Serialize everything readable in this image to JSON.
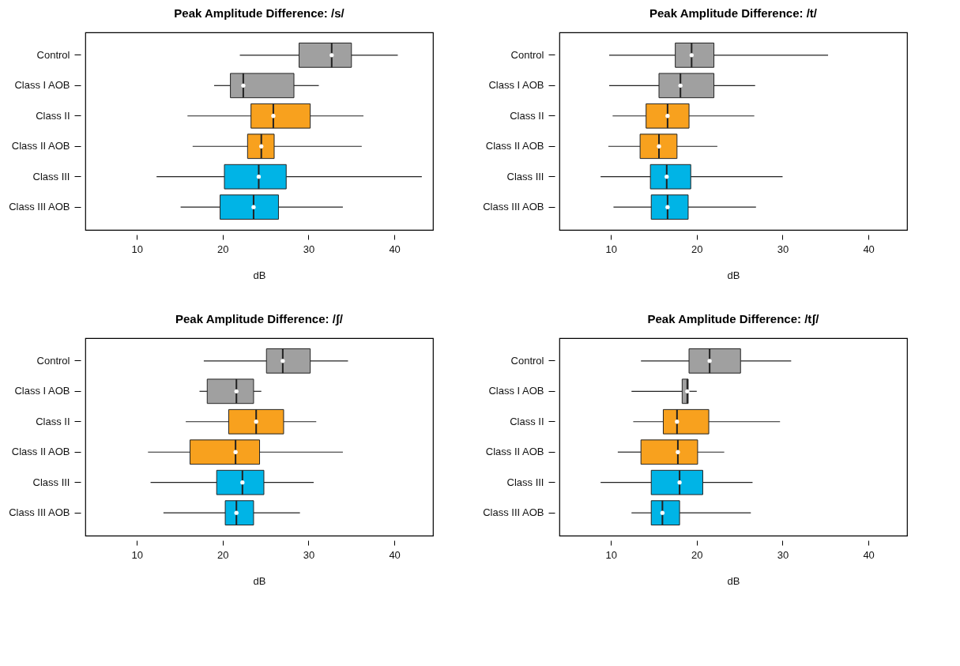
{
  "chart_data": [
    {
      "type": "box",
      "title": "Peak Amplitude Difference:  /s/",
      "xlabel": "dB",
      "orientation": "horizontal",
      "categories": [
        "Control",
        "Class I AOB",
        "Class II",
        "Class II AOB",
        "Class III",
        "Class III AOB"
      ],
      "colors": [
        "#a0a0a0",
        "#a0a0a0",
        "#f8a11e",
        "#f8a11e",
        "#00b4e6",
        "#00b4e6"
      ],
      "xlim": [
        4,
        44.5
      ],
      "xticks": [
        10,
        20,
        30,
        40
      ],
      "grid": false,
      "boxes": [
        {
          "low": 22,
          "q1": 28.9,
          "median": 32.7,
          "q3": 35,
          "high": 40.4
        },
        {
          "low": 19,
          "q1": 20.9,
          "median": 22.4,
          "q3": 28.3,
          "high": 31.2
        },
        {
          "low": 15.9,
          "q1": 23.3,
          "median": 25.9,
          "q3": 30.2,
          "high": 36.4
        },
        {
          "low": 16.5,
          "q1": 22.9,
          "median": 24.5,
          "q3": 26,
          "high": 36.2
        },
        {
          "low": 12.3,
          "q1": 20.2,
          "median": 24.2,
          "q3": 27.4,
          "high": 43.2
        },
        {
          "low": 15.1,
          "q1": 19.7,
          "median": 23.6,
          "q3": 26.5,
          "high": 34
        }
      ]
    },
    {
      "type": "box",
      "title": "Peak Amplitude Difference:  /t/",
      "xlabel": "dB",
      "orientation": "horizontal",
      "categories": [
        "Control",
        "Class I AOB",
        "Class II",
        "Class II AOB",
        "Class III",
        "Class III AOB"
      ],
      "colors": [
        "#a0a0a0",
        "#a0a0a0",
        "#f8a11e",
        "#f8a11e",
        "#00b4e6",
        "#00b4e6"
      ],
      "xlim": [
        4,
        44.5
      ],
      "xticks": [
        10,
        20,
        30,
        40
      ],
      "grid": false,
      "boxes": [
        {
          "low": 9.8,
          "q1": 17.5,
          "median": 19.4,
          "q3": 22,
          "high": 35.3
        },
        {
          "low": 9.8,
          "q1": 15.6,
          "median": 18.1,
          "q3": 22,
          "high": 26.8
        },
        {
          "low": 10.2,
          "q1": 14.1,
          "median": 16.6,
          "q3": 19.1,
          "high": 26.7
        },
        {
          "low": 9.7,
          "q1": 13.4,
          "median": 15.6,
          "q3": 17.7,
          "high": 22.4
        },
        {
          "low": 8.8,
          "q1": 14.6,
          "median": 16.5,
          "q3": 19.3,
          "high": 30
        },
        {
          "low": 10.3,
          "q1": 14.7,
          "median": 16.6,
          "q3": 19,
          "high": 26.9
        }
      ]
    },
    {
      "type": "box",
      "title": "Peak Amplitude Difference:  /ʃ/",
      "xlabel": "dB",
      "orientation": "horizontal",
      "categories": [
        "Control",
        "Class I AOB",
        "Class II",
        "Class II AOB",
        "Class III",
        "Class III AOB"
      ],
      "colors": [
        "#a0a0a0",
        "#a0a0a0",
        "#f8a11e",
        "#f8a11e",
        "#00b4e6",
        "#00b4e6"
      ],
      "xlim": [
        4,
        44.5
      ],
      "xticks": [
        10,
        20,
        30,
        40
      ],
      "grid": false,
      "boxes": [
        {
          "low": 17.8,
          "q1": 25.1,
          "median": 27,
          "q3": 30.2,
          "high": 34.6
        },
        {
          "low": 17.3,
          "q1": 18.2,
          "median": 21.6,
          "q3": 23.6,
          "high": 24.5
        },
        {
          "low": 15.7,
          "q1": 20.7,
          "median": 23.9,
          "q3": 27.1,
          "high": 30.9
        },
        {
          "low": 11.3,
          "q1": 16.2,
          "median": 21.5,
          "q3": 24.3,
          "high": 34
        },
        {
          "low": 11.6,
          "q1": 19.3,
          "median": 22.3,
          "q3": 24.8,
          "high": 30.6
        },
        {
          "low": 13.1,
          "q1": 20.3,
          "median": 21.6,
          "q3": 23.6,
          "high": 29
        }
      ]
    },
    {
      "type": "box",
      "title": "Peak Amplitude Difference:  /tʃ/",
      "xlabel": "dB",
      "orientation": "horizontal",
      "categories": [
        "Control",
        "Class I AOB",
        "Class II",
        "Class II AOB",
        "Class III",
        "Class III AOB"
      ],
      "colors": [
        "#a0a0a0",
        "#a0a0a0",
        "#f8a11e",
        "#f8a11e",
        "#00b4e6",
        "#00b4e6"
      ],
      "xlim": [
        4,
        44.5
      ],
      "xticks": [
        10,
        20,
        30,
        40
      ],
      "grid": false,
      "boxes": [
        {
          "low": 13.5,
          "q1": 19.1,
          "median": 21.5,
          "q3": 25.1,
          "high": 31
        },
        {
          "low": 12.4,
          "q1": 18.3,
          "median": 18.9,
          "q3": 19,
          "high": 20
        },
        {
          "low": 12.6,
          "q1": 16.1,
          "median": 17.7,
          "q3": 21.4,
          "high": 29.7
        },
        {
          "low": 10.8,
          "q1": 13.5,
          "median": 17.8,
          "q3": 20.1,
          "high": 23.2
        },
        {
          "low": 8.8,
          "q1": 14.7,
          "median": 18,
          "q3": 20.7,
          "high": 26.5
        },
        {
          "low": 12.4,
          "q1": 14.7,
          "median": 16,
          "q3": 18,
          "high": 26.3
        }
      ]
    }
  ]
}
